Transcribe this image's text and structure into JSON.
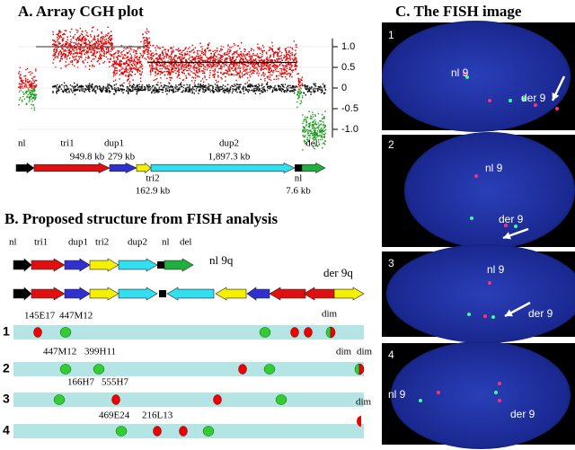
{
  "panel_a": {
    "title": "A. Array CGH plot",
    "yticks": [
      {
        "value": 1,
        "label": "1.0"
      },
      0.5,
      0,
      -0.5,
      {
        "value": -1,
        "label": "-1.0"
      }
    ],
    "segments": [
      {
        "name": "nl"
      },
      {
        "name": "tri1",
        "size": "949.8 kb"
      },
      {
        "name": "dup1",
        "size": "279 kb"
      },
      {
        "name": "tri2",
        "size": "162.9 kb"
      },
      {
        "name": "dup2",
        "size": "1,897.3 kb"
      },
      {
        "name": "nl",
        "size": "7.6 kb"
      },
      {
        "name": "del"
      }
    ]
  },
  "panel_b": {
    "title": "B. Proposed structure from FISH analysis",
    "segment_labels": [
      "nl",
      "tri1",
      "dup1",
      "tri2",
      "dup2",
      "nl",
      "del"
    ],
    "normal_label": "nl 9q",
    "derivative_label": "der 9q",
    "rows": [
      {
        "number": "1",
        "probes": [
          "145E17",
          "447M12"
        ],
        "notes": [
          "dim"
        ]
      },
      {
        "number": "2",
        "probes": [
          "447M12",
          "399H11"
        ],
        "notes": [
          "dim",
          "dim"
        ]
      },
      {
        "number": "3",
        "probes": [
          "166H7",
          "555H7"
        ],
        "notes": [
          "dim"
        ]
      },
      {
        "number": "4",
        "probes": [
          "469E24",
          "216L13"
        ],
        "notes": []
      }
    ]
  },
  "panel_c": {
    "title": "C. The FISH image",
    "images": [
      {
        "number": "1",
        "labels": [
          "nl 9",
          "der 9"
        ]
      },
      {
        "number": "2",
        "labels": [
          "nl 9",
          "der 9"
        ]
      },
      {
        "number": "3",
        "labels": [
          "nl 9",
          "der 9"
        ]
      },
      {
        "number": "4",
        "labels": [
          "nl 9",
          "der 9"
        ]
      }
    ]
  }
}
